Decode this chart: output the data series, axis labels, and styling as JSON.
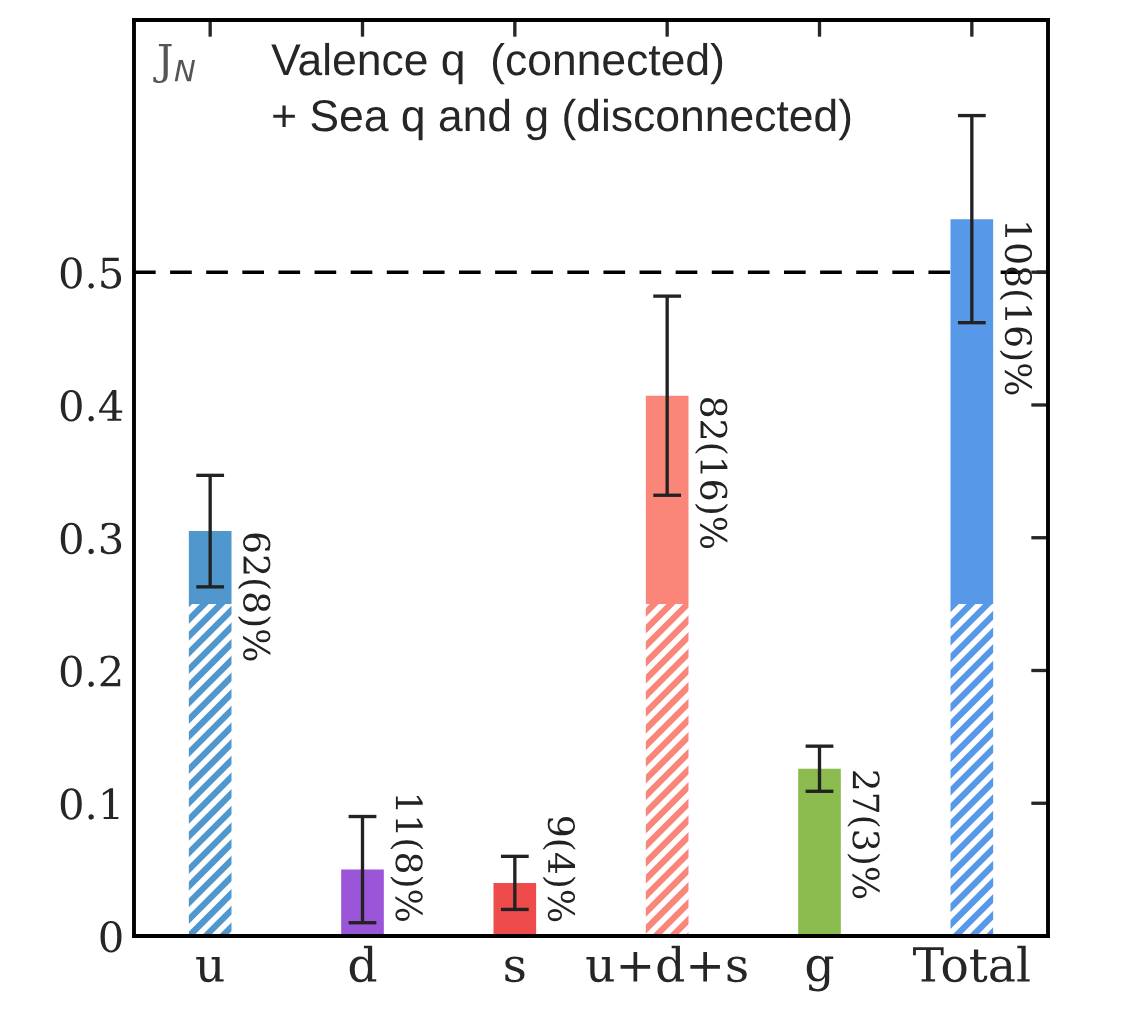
{
  "chart_data": {
    "type": "bar",
    "stacked": true,
    "categories": [
      "u",
      "d",
      "s",
      "u+d+s",
      "g",
      "Total"
    ],
    "series": [
      {
        "colors": [
          "#4f97cc",
          "#9b55d8",
          "#ee4b4b",
          "#fa8579",
          "#8cbc4f",
          "#5799e8"
        ],
        "values": [
          0.25,
          null,
          null,
          0.25,
          null,
          0.25
        ]
      },
      {
        "colors": [
          "#4f97cc",
          "#9b55d8",
          "#ee4b4b",
          "#fa8579",
          "#8cbc4f",
          "#5799e8"
        ],
        "values": [
          0.055,
          0.05,
          0.04,
          0.157,
          0.126,
          0.29
        ],
        "errors": [
          0.042,
          0.04,
          0.02,
          0.075,
          0.017,
          0.078
        ]
      }
    ],
    "ylim": [
      0,
      0.69
    ],
    "yticks": [
      0,
      0.1,
      0.2,
      0.3,
      0.4,
      0.5
    ],
    "ref_lines": [
      {
        "axis": "y",
        "value": 0.5,
        "color": "#000000",
        "line_style": "dashed"
      }
    ],
    "annotations": [
      "J$_{N}$",
      "Valence q  (connected)\n+ Sea q and g (disconnected)",
      "62(8)%",
      "11(8)%",
      "9(4)%",
      "82(16)%",
      "27(3)%",
      "108(16)%"
    ],
    "grid": false
  }
}
